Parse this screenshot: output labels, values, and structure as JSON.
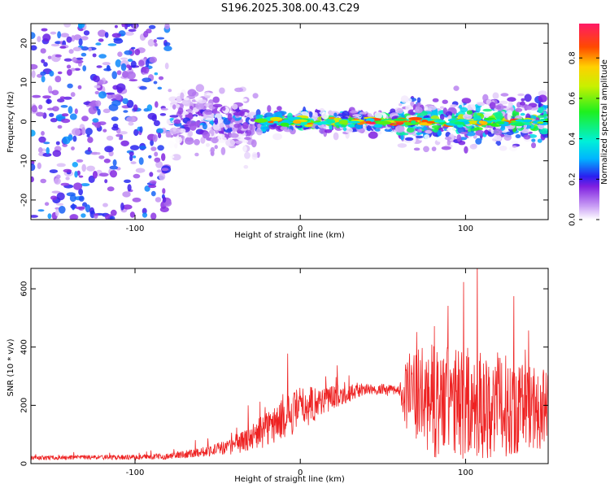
{
  "title": "S196.2025.308.00.43.C29",
  "chart_data": [
    {
      "type": "heatmap",
      "xlabel": "Height of straight line (km)",
      "ylabel": "Frequency (Hz)",
      "xlim": [
        -163,
        150
      ],
      "ylim": [
        -25,
        25
      ],
      "xticks": [
        -100,
        0,
        100
      ],
      "yticks": [
        -20,
        -10,
        0,
        10,
        20
      ],
      "colorbar": {
        "label": "Normalized spectral amplitude",
        "range": [
          0,
          0.97
        ],
        "ticks": [
          0.0,
          0.2,
          0.4,
          0.6,
          0.8
        ]
      },
      "signal_band_regions": [
        {
          "x_start": -163,
          "x_end": -80,
          "freq_spread_hz": 25,
          "peak_amplitude": 0.25,
          "description": "broadband noise"
        },
        {
          "x_start": -80,
          "x_end": -25,
          "freq_spread_hz": 12,
          "peak_amplitude": 0.35
        },
        {
          "x_start": -25,
          "x_end": 60,
          "freq_spread_hz": 4,
          "peak_amplitude": 0.97
        },
        {
          "x_start": 60,
          "x_end": 150,
          "freq_spread_hz": 9,
          "peak_amplitude": 0.9
        }
      ]
    },
    {
      "type": "line",
      "xlabel": "Height of straight line (km)",
      "ylabel": "SNR (10 * v/v)",
      "xlim": [
        -163,
        150
      ],
      "ylim": [
        0,
        670
      ],
      "xticks": [
        -100,
        0,
        100
      ],
      "yticks": [
        0,
        200,
        400,
        600
      ],
      "series": [
        {
          "name": "SNR",
          "color": "#ee2222",
          "envelope_x": [
            -163,
            -100,
            -80,
            -60,
            -40,
            -20,
            0,
            20,
            40,
            60,
            65,
            80,
            100,
            120,
            150
          ],
          "envelope_mean": [
            20,
            22,
            25,
            40,
            60,
            120,
            190,
            230,
            255,
            250,
            240,
            215,
            205,
            200,
            190
          ],
          "envelope_noise": [
            10,
            12,
            15,
            25,
            40,
            90,
            110,
            60,
            25,
            30,
            200,
            280,
            280,
            260,
            200
          ]
        }
      ]
    }
  ]
}
